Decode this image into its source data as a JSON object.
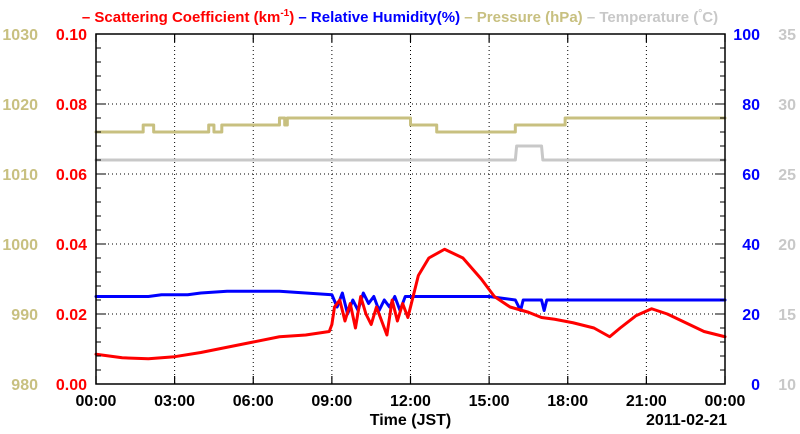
{
  "chart_data": {
    "type": "line",
    "legend": {
      "placement": "top",
      "entries": [
        {
          "name": "Scattering Coefficient",
          "prefix": "– Scattering Coefficient (km",
          "sup": "-1",
          "suffix": ")",
          "color": "#ff0000"
        },
        {
          "name": "Relative Humidity",
          "prefix": "– Relative Humidity(%)",
          "color": "#0000ff"
        },
        {
          "name": "Pressure",
          "prefix": "– Pressure (hPa)",
          "color": "#c8c080"
        },
        {
          "name": "Temperature",
          "prefix": "– Temperature (",
          "deg": "°",
          "suffix": "C)",
          "color": "#c8c8c8"
        }
      ]
    },
    "xlabel": "Time (JST)",
    "date_label": "2011-02-21",
    "x_range_hours": [
      0,
      24
    ],
    "x_ticks": [
      "00:00",
      "03:00",
      "06:00",
      "09:00",
      "12:00",
      "15:00",
      "18:00",
      "21:00",
      "00:00"
    ],
    "grid": "dotted",
    "axes": {
      "pressure": {
        "range": [
          980,
          1030
        ],
        "ticks": [
          "980",
          "990",
          "1000",
          "1010",
          "1020",
          "1030"
        ],
        "color": "#c8c080",
        "side": "left-outer"
      },
      "scattering": {
        "range": [
          0,
          0.1
        ],
        "ticks": [
          "0.00",
          "0.02",
          "0.04",
          "0.06",
          "0.08",
          "0.10"
        ],
        "color": "#ff0000",
        "side": "left-inner"
      },
      "humidity": {
        "range": [
          0,
          100
        ],
        "ticks": [
          "0",
          "20",
          "40",
          "60",
          "80",
          "100"
        ],
        "color": "#0000ff",
        "side": "right-inner"
      },
      "temperature": {
        "range": [
          10,
          35
        ],
        "ticks": [
          "10",
          "15",
          "20",
          "25",
          "30",
          "35"
        ],
        "color": "#c8c8c8",
        "side": "right-outer"
      }
    },
    "series": [
      {
        "name": "Temperature",
        "axis": "temperature",
        "color": "#c8c8c8",
        "step": true,
        "points": [
          [
            0,
            26.0
          ],
          [
            16.0,
            26.0
          ],
          [
            16.05,
            27.0
          ],
          [
            17.0,
            27.0
          ],
          [
            17.05,
            26.0
          ],
          [
            24.0,
            26.0
          ]
        ]
      },
      {
        "name": "Pressure",
        "axis": "pressure",
        "color": "#c8c080",
        "step": true,
        "points": [
          [
            0,
            1016
          ],
          [
            1.8,
            1016
          ],
          [
            1.8,
            1017
          ],
          [
            2.2,
            1017
          ],
          [
            2.2,
            1016
          ],
          [
            4.3,
            1016
          ],
          [
            4.3,
            1017
          ],
          [
            4.5,
            1017
          ],
          [
            4.5,
            1016
          ],
          [
            4.8,
            1016
          ],
          [
            4.8,
            1017
          ],
          [
            7.0,
            1017
          ],
          [
            7.0,
            1018
          ],
          [
            7.2,
            1018
          ],
          [
            7.2,
            1017
          ],
          [
            7.3,
            1017
          ],
          [
            7.3,
            1018
          ],
          [
            12.0,
            1018
          ],
          [
            12.0,
            1017
          ],
          [
            13.0,
            1017
          ],
          [
            13.0,
            1016
          ],
          [
            15.0,
            1016
          ],
          [
            15.0,
            1016
          ],
          [
            16.0,
            1016
          ],
          [
            16.0,
            1017
          ],
          [
            17.9,
            1017
          ],
          [
            17.9,
            1018
          ],
          [
            24.0,
            1018
          ]
        ]
      },
      {
        "name": "Relative Humidity",
        "axis": "humidity",
        "color": "#0000ff",
        "step": false,
        "points": [
          [
            0,
            25
          ],
          [
            2.0,
            25
          ],
          [
            2.5,
            25.5
          ],
          [
            3.5,
            25.5
          ],
          [
            4.0,
            26
          ],
          [
            5.0,
            26.5
          ],
          [
            7.0,
            26.5
          ],
          [
            8.0,
            26
          ],
          [
            9.0,
            25.5
          ],
          [
            9.2,
            22
          ],
          [
            9.4,
            26
          ],
          [
            9.6,
            20
          ],
          [
            9.8,
            24
          ],
          [
            10.0,
            21
          ],
          [
            10.2,
            26
          ],
          [
            10.4,
            23
          ],
          [
            10.6,
            25
          ],
          [
            10.8,
            21
          ],
          [
            11.0,
            24
          ],
          [
            11.2,
            22
          ],
          [
            11.4,
            25
          ],
          [
            11.6,
            21
          ],
          [
            11.8,
            25
          ],
          [
            12.0,
            25
          ],
          [
            13.0,
            25
          ],
          [
            14.0,
            25
          ],
          [
            15.0,
            25
          ],
          [
            15.5,
            24.5
          ],
          [
            16.0,
            24
          ],
          [
            16.2,
            21
          ],
          [
            16.3,
            24
          ],
          [
            17.0,
            24
          ],
          [
            17.1,
            21
          ],
          [
            17.2,
            24
          ],
          [
            18.0,
            24
          ],
          [
            21.0,
            24
          ],
          [
            24.0,
            24
          ]
        ]
      },
      {
        "name": "Scattering Coefficient",
        "axis": "scattering",
        "color": "#ff0000",
        "step": false,
        "points": [
          [
            0,
            0.0085
          ],
          [
            1.0,
            0.0075
          ],
          [
            2.0,
            0.0072
          ],
          [
            3.0,
            0.0078
          ],
          [
            4.0,
            0.009
          ],
          [
            5.0,
            0.0105
          ],
          [
            6.0,
            0.012
          ],
          [
            7.0,
            0.0135
          ],
          [
            8.0,
            0.014
          ],
          [
            8.9,
            0.015
          ],
          [
            9.0,
            0.017
          ],
          [
            9.1,
            0.022
          ],
          [
            9.3,
            0.024
          ],
          [
            9.5,
            0.018
          ],
          [
            9.7,
            0.023
          ],
          [
            9.9,
            0.016
          ],
          [
            10.1,
            0.025
          ],
          [
            10.3,
            0.02
          ],
          [
            10.5,
            0.017
          ],
          [
            10.7,
            0.022
          ],
          [
            10.9,
            0.018
          ],
          [
            11.1,
            0.014
          ],
          [
            11.3,
            0.024
          ],
          [
            11.5,
            0.018
          ],
          [
            11.7,
            0.023
          ],
          [
            11.9,
            0.019
          ],
          [
            12.0,
            0.022
          ],
          [
            12.3,
            0.031
          ],
          [
            12.7,
            0.036
          ],
          [
            13.3,
            0.0385
          ],
          [
            14.0,
            0.036
          ],
          [
            14.7,
            0.03
          ],
          [
            15.2,
            0.025
          ],
          [
            15.8,
            0.022
          ],
          [
            16.5,
            0.0205
          ],
          [
            17.0,
            0.019
          ],
          [
            17.5,
            0.0185
          ],
          [
            18.2,
            0.0175
          ],
          [
            19.0,
            0.016
          ],
          [
            19.6,
            0.0135
          ],
          [
            20.0,
            0.016
          ],
          [
            20.6,
            0.0195
          ],
          [
            21.2,
            0.0215
          ],
          [
            21.8,
            0.02
          ],
          [
            22.5,
            0.0175
          ],
          [
            23.2,
            0.015
          ],
          [
            24.0,
            0.0135
          ]
        ]
      }
    ]
  }
}
